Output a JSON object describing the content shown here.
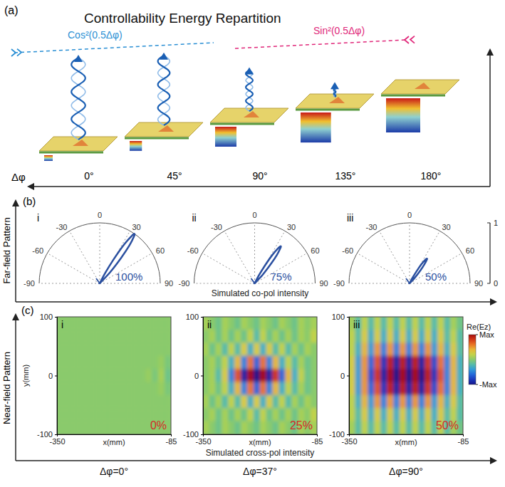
{
  "panel_a": {
    "label": "(a)",
    "title": "Controllability Energy Repartition",
    "left_label": "Cos²(0.5Δφ)",
    "right_label": "Sin²(0.5Δφ)",
    "axis_title": "Δφ",
    "axis_ticks": [
      "0°",
      "45°",
      "90°",
      "135°",
      "180°"
    ]
  },
  "panel_b": {
    "label": "(b)",
    "row_title": "Far-field Pattern",
    "axis_title": "Simulated co-pol intensity"
  },
  "panel_c": {
    "label": "(c)",
    "row_title": "Near-field Pattern",
    "axis_title": "Simulated cross-pol intensity",
    "axis_ticks": [
      "Δφ=0°",
      "Δφ=37°",
      "Δφ=90°"
    ],
    "colorbar": {
      "title": "Re(Ez)",
      "range": [
        -1,
        1
      ],
      "ticks": [
        {
          "value": 1,
          "label": "Max"
        },
        {
          "value": -1,
          "label": "-Max"
        }
      ]
    }
  },
  "chart_data": [
    {
      "type": "polar",
      "label": "i",
      "annotation": "100%",
      "color": "#2b50a0",
      "grid": true,
      "xlim": [
        -90,
        90
      ],
      "xticks": [
        -90,
        -60,
        -30,
        0,
        30,
        60,
        90
      ],
      "ylim": [
        0,
        1
      ],
      "yticks": [
        0,
        1
      ],
      "x": [
        25,
        28,
        30,
        32,
        34,
        35,
        36,
        38,
        40,
        43,
        46
      ],
      "values": [
        0,
        0.2,
        0.45,
        0.75,
        0.95,
        1,
        0.97,
        0.8,
        0.55,
        0.25,
        0
      ]
    },
    {
      "type": "polar",
      "label": "ii",
      "annotation": "75%",
      "color": "#2b50a0",
      "grid": true,
      "xlim": [
        -90,
        90
      ],
      "xticks": [
        -90,
        -60,
        -30,
        0,
        30,
        60,
        90
      ],
      "ylim": [
        0,
        1
      ],
      "yticks": [
        0,
        1
      ],
      "x": [
        25,
        28,
        30,
        32,
        34,
        35,
        36,
        38,
        40,
        43,
        46
      ],
      "values": [
        0,
        0.15,
        0.34,
        0.56,
        0.71,
        0.75,
        0.73,
        0.6,
        0.41,
        0.19,
        0
      ]
    },
    {
      "type": "polar",
      "label": "iii",
      "annotation": "50%",
      "color": "#2b50a0",
      "grid": true,
      "xlim": [
        -90,
        90
      ],
      "xticks": [
        -90,
        -60,
        -30,
        0,
        30,
        60,
        90
      ],
      "ylim": [
        0,
        1
      ],
      "yticks": [
        0,
        1
      ],
      "x": [
        25,
        28,
        30,
        32,
        34,
        35,
        36,
        38,
        40,
        43,
        46
      ],
      "values": [
        0,
        0.1,
        0.23,
        0.38,
        0.48,
        0.5,
        0.49,
        0.4,
        0.28,
        0.13,
        0
      ]
    },
    {
      "type": "heatmap",
      "label": "i",
      "annotation": "0%",
      "x_label": "x(mm)",
      "y_label": "y(mm)",
      "xlim": [
        -350,
        -85
      ],
      "xticks": [
        -350,
        -85
      ],
      "ylim": [
        -100,
        100
      ],
      "yticks": [
        -100,
        0,
        100
      ],
      "cells": [
        [
          0,
          0,
          0,
          0,
          0,
          0,
          0,
          0,
          0,
          0,
          0,
          0,
          0,
          0,
          0,
          0,
          0,
          0
        ],
        [
          0,
          0,
          0,
          0,
          0,
          0,
          0,
          0,
          0,
          0,
          0,
          0,
          0,
          0,
          0,
          0,
          0,
          0
        ],
        [
          0,
          0,
          0,
          0,
          0,
          0,
          0,
          0,
          0,
          0,
          0,
          0,
          0,
          0,
          0,
          0,
          0,
          0
        ],
        [
          0,
          0,
          0,
          0,
          0,
          0,
          0,
          0,
          0,
          0,
          0,
          0,
          0,
          0,
          0,
          0,
          0.05,
          -0.05
        ],
        [
          0,
          0,
          0,
          0,
          0,
          0,
          0,
          0,
          0,
          0,
          0,
          0,
          0,
          0,
          0.05,
          -0.05,
          0.1,
          -0.1
        ],
        [
          0,
          0,
          0,
          0,
          0,
          0,
          0,
          0,
          0,
          0,
          0,
          0,
          0,
          0,
          0,
          0,
          0.05,
          -0.05
        ],
        [
          0,
          0,
          0,
          0,
          0,
          0,
          0,
          0,
          0,
          0,
          0,
          0,
          0,
          0,
          0,
          0,
          0,
          0
        ],
        [
          0,
          0,
          0,
          0,
          0,
          0,
          0,
          0,
          0,
          0,
          0,
          0,
          0,
          0,
          0,
          0,
          0,
          0
        ],
        [
          0,
          0,
          0,
          0,
          0,
          0,
          0,
          0,
          0,
          0,
          0,
          0,
          0,
          0,
          0,
          0,
          0,
          0
        ]
      ]
    },
    {
      "type": "heatmap",
      "label": "ii",
      "annotation": "25%",
      "x_label": "x(mm)",
      "xlim": [
        -350,
        -85
      ],
      "xticks": [
        -350,
        -85
      ],
      "ylim": [
        -100,
        100
      ],
      "yticks": [
        -100,
        0,
        100
      ],
      "cells": [
        [
          0.1,
          0,
          -0.1,
          0.1,
          0,
          -0.1,
          0.1,
          0,
          -0.1,
          0.1,
          0,
          -0.1,
          0.1,
          0,
          -0.1,
          0.1,
          0,
          0.1
        ],
        [
          0,
          0.1,
          -0.1,
          0.1,
          -0.1,
          0.1,
          -0.1,
          0.2,
          -0.2,
          0.2,
          -0.1,
          0.1,
          -0.1,
          0.1,
          -0.1,
          0.1,
          0,
          0.2
        ],
        [
          0.1,
          -0.1,
          0.1,
          -0.2,
          0.2,
          -0.2,
          0.3,
          -0.3,
          0.3,
          -0.3,
          0.3,
          -0.2,
          0.2,
          -0.2,
          0.1,
          -0.1,
          0.1,
          0
        ],
        [
          0,
          0.1,
          -0.1,
          0.2,
          -0.3,
          0.4,
          -0.5,
          0.6,
          -0.6,
          0.6,
          -0.5,
          0.4,
          -0.3,
          0.2,
          -0.2,
          0.1,
          -0.1,
          0
        ],
        [
          0,
          0.1,
          -0.2,
          0.3,
          -0.5,
          0.7,
          -0.9,
          1,
          -1,
          1,
          -0.9,
          0.8,
          -0.6,
          0.4,
          -0.3,
          0.2,
          -0.1,
          0
        ],
        [
          0,
          0.1,
          -0.1,
          0.2,
          -0.3,
          0.4,
          -0.5,
          0.6,
          -0.6,
          0.6,
          -0.5,
          0.4,
          -0.3,
          0.2,
          -0.2,
          0.1,
          -0.1,
          0
        ],
        [
          0.1,
          -0.1,
          0.1,
          -0.2,
          0.2,
          -0.2,
          0.3,
          -0.3,
          0.3,
          -0.3,
          0.3,
          -0.2,
          0.2,
          -0.2,
          0.1,
          -0.1,
          0.1,
          0
        ],
        [
          0,
          0.1,
          -0.1,
          0.1,
          -0.1,
          0.1,
          -0.1,
          0.2,
          -0.2,
          0.2,
          -0.1,
          0.1,
          -0.1,
          0.1,
          -0.1,
          0.1,
          0,
          0.2
        ],
        [
          0.1,
          0,
          -0.1,
          0.1,
          0,
          -0.1,
          0.1,
          0,
          -0.1,
          0.1,
          0,
          -0.1,
          0.1,
          0,
          -0.1,
          0.1,
          0,
          0.1
        ]
      ]
    },
    {
      "type": "heatmap",
      "label": "iii",
      "annotation": "50%",
      "x_label": "x(mm)",
      "xlim": [
        -350,
        -85
      ],
      "xticks": [
        -350,
        -85
      ],
      "ylim": [
        -100,
        100
      ],
      "yticks": [
        -100,
        0,
        100
      ],
      "cells": [
        [
          0.1,
          -0.2,
          0.2,
          -0.2,
          0.2,
          -0.2,
          0.2,
          -0.2,
          0.2,
          -0.2,
          0.2,
          -0.2,
          0.2,
          -0.2,
          0.2,
          -0.2,
          0.1,
          -0.1
        ],
        [
          0.2,
          -0.2,
          0.3,
          -0.3,
          0.3,
          -0.3,
          0.3,
          -0.3,
          0.3,
          -0.3,
          0.3,
          -0.3,
          0.3,
          -0.3,
          0.3,
          -0.2,
          0.2,
          -0.2
        ],
        [
          0.2,
          -0.3,
          0.4,
          -0.4,
          0.5,
          -0.5,
          0.5,
          -0.5,
          0.5,
          -0.5,
          0.5,
          -0.5,
          0.5,
          -0.4,
          0.4,
          -0.3,
          0.3,
          -0.2
        ],
        [
          0.3,
          -0.4,
          0.5,
          -0.6,
          0.7,
          -0.8,
          0.9,
          -0.9,
          0.9,
          -0.9,
          0.9,
          -0.9,
          0.8,
          -0.7,
          0.6,
          -0.5,
          0.4,
          -0.3
        ],
        [
          0.3,
          -0.4,
          0.5,
          -0.7,
          0.8,
          -0.9,
          1,
          -1,
          1,
          -1,
          1,
          -1,
          0.9,
          -0.8,
          0.7,
          -0.5,
          0.4,
          -0.3
        ],
        [
          0.3,
          -0.4,
          0.5,
          -0.6,
          0.7,
          -0.8,
          0.9,
          -0.9,
          0.9,
          -0.9,
          0.9,
          -0.9,
          0.8,
          -0.7,
          0.6,
          -0.5,
          0.4,
          -0.3
        ],
        [
          0.2,
          -0.3,
          0.4,
          -0.4,
          0.5,
          -0.5,
          0.5,
          -0.5,
          0.5,
          -0.5,
          0.5,
          -0.5,
          0.5,
          -0.4,
          0.4,
          -0.3,
          0.3,
          -0.2
        ],
        [
          0.2,
          -0.2,
          0.3,
          -0.3,
          0.3,
          -0.3,
          0.3,
          -0.3,
          0.3,
          -0.3,
          0.3,
          -0.3,
          0.3,
          -0.3,
          0.3,
          -0.2,
          0.2,
          -0.2
        ],
        [
          0.1,
          -0.2,
          0.2,
          -0.2,
          0.2,
          -0.2,
          0.2,
          -0.2,
          0.2,
          -0.2,
          0.2,
          -0.2,
          0.2,
          -0.2,
          0.2,
          -0.2,
          0.1,
          -0.1
        ]
      ]
    }
  ]
}
